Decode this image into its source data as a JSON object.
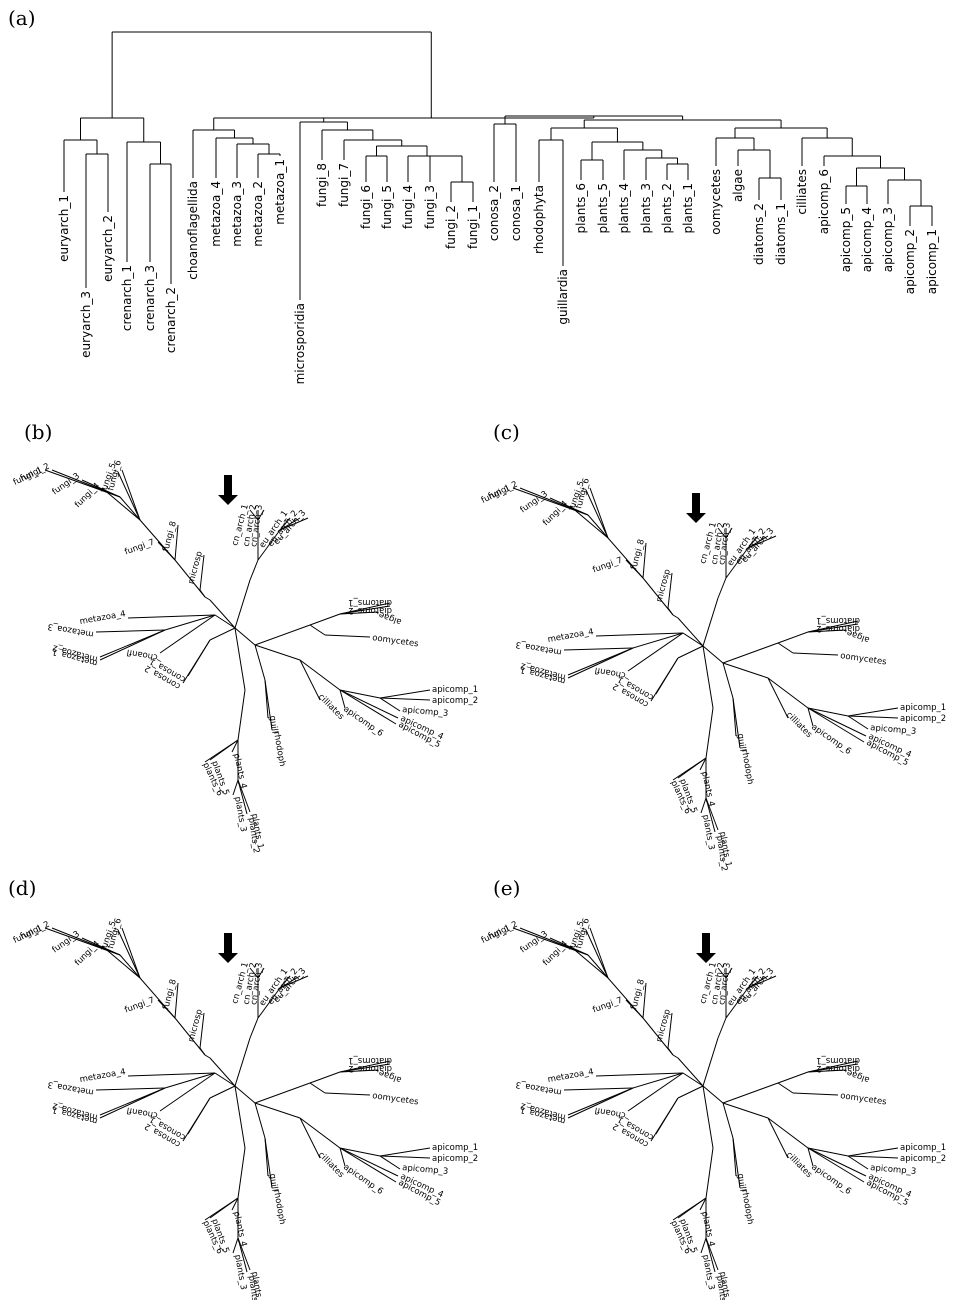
{
  "panels": {
    "a": {
      "label": "(a)"
    },
    "b": {
      "label": "(b)"
    },
    "c": {
      "label": "(c)"
    },
    "d": {
      "label": "(d)"
    },
    "e": {
      "label": "(e)"
    }
  },
  "dendrogram_leaves": [
    "euryarch_1",
    "euryarch_3",
    "euryarch_2",
    "crenarch_1",
    "crenarch_3",
    "crenarch_2",
    "choanoflagellida",
    "metazoa_4",
    "metazoa_3",
    "metazoa_2",
    "metazoa_1",
    "microsporidia",
    "fungi_8",
    "fungi_7",
    "fungi_6",
    "fungi_5",
    "fungi_4",
    "fungi_3",
    "fungi_2",
    "fungi_1",
    "conosa_2",
    "conosa_1",
    "rhodophyta",
    "guillardia",
    "plants_6",
    "plants_5",
    "plants_4",
    "plants_3",
    "plants_2",
    "plants_1",
    "oomycetes",
    "algae",
    "diatoms_2",
    "diatoms_1",
    "cilliates",
    "apicomp_6",
    "apicomp_5",
    "apicomp_4",
    "apicomp_3",
    "apicomp_2",
    "apicomp_1"
  ],
  "unrooted_leaves": [
    "fungi_1",
    "fungi_2",
    "fungi_3",
    "fungi_4",
    "fungi_5",
    "fungi_6",
    "fungi_7",
    "fungi_8",
    "microsp",
    "cn_arch_1",
    "cn_arch_2",
    "cn_arch_3",
    "eu_arch_1",
    "eu_arch_2",
    "eu_arch_3",
    "diatoms_1",
    "diatoms_2",
    "algae",
    "oomycetes",
    "apicomp_1",
    "apicomp_2",
    "apicomp_3",
    "apicomp_4",
    "apicomp_5",
    "apicomp_6",
    "cilliates",
    "rhodoph",
    "guill",
    "plants_1",
    "plants_2",
    "plants_3",
    "plants_4",
    "plants_5",
    "plants_6",
    "conosa_1",
    "conosa_2",
    "choanfl",
    "metazoa_1",
    "metazoa_2",
    "metazoa_3",
    "metazoa_4"
  ]
}
